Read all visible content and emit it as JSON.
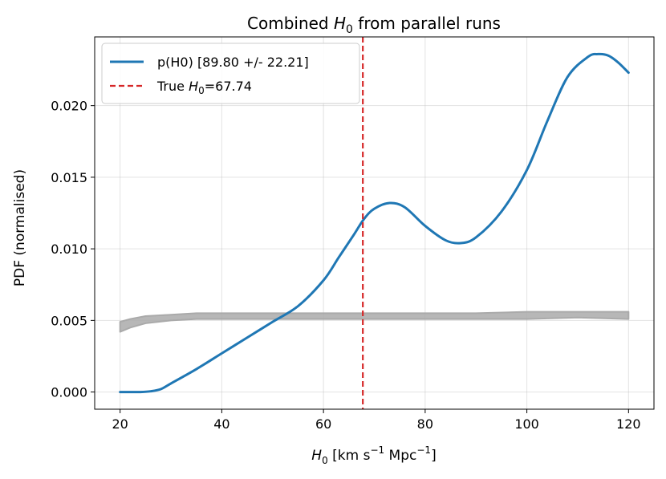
{
  "chart_data": {
    "type": "line",
    "title": {
      "prefix": "Combined ",
      "symbol": "H",
      "sub": "0",
      "suffix": " from parallel runs"
    },
    "xlabel": {
      "symbol": "H",
      "sub": "0",
      "text": " [km s",
      "sup1": "−1",
      "mid": " Mpc",
      "sup2": "−1",
      "end": "]"
    },
    "ylabel": "PDF (normalised)",
    "xlim": [
      15,
      125
    ],
    "ylim": [
      -0.0012,
      0.0248
    ],
    "xticks": [
      20,
      40,
      60,
      80,
      100,
      120
    ],
    "xtick_labels": [
      "20",
      "40",
      "60",
      "80",
      "100",
      "120"
    ],
    "yticks": [
      0.0,
      0.005,
      0.01,
      0.015,
      0.02
    ],
    "ytick_labels": [
      "0.000",
      "0.005",
      "0.010",
      "0.015",
      "0.020"
    ],
    "grid": true,
    "legend_position": "top-left",
    "series": [
      {
        "name": "p(H0) [89.80 +/- 22.21]",
        "color": "#1f77b4",
        "style": "solid",
        "x": [
          20,
          22,
          24,
          26,
          28,
          30,
          35,
          40,
          45,
          50,
          55,
          60,
          63,
          66,
          68,
          70,
          73,
          76,
          80,
          84,
          87,
          90,
          95,
          100,
          104,
          108,
          112,
          114,
          116,
          118,
          120
        ],
        "y": [
          0.0,
          0.0,
          0.0,
          5e-05,
          0.0002,
          0.0006,
          0.0016,
          0.0027,
          0.0038,
          0.0049,
          0.006,
          0.0078,
          0.0094,
          0.011,
          0.0121,
          0.0128,
          0.0132,
          0.0129,
          0.0116,
          0.0106,
          0.0104,
          0.0108,
          0.0126,
          0.0155,
          0.0189,
          0.022,
          0.0234,
          0.0236,
          0.0235,
          0.023,
          0.0223
        ]
      },
      {
        "name": "True H0=67.74",
        "legend_label": {
          "prefix": "True ",
          "symbol": "H",
          "sub": "0",
          "suffix": "=67.74"
        },
        "color": "#d62728",
        "style": "dashed",
        "x": 67.74
      },
      {
        "color": "#aaaaaa",
        "style": "band",
        "x": [
          20,
          22,
          25,
          30,
          35,
          40,
          50,
          60,
          70,
          80,
          90,
          100,
          110,
          120
        ],
        "y_low": [
          0.0042,
          0.0045,
          0.0048,
          0.005,
          0.0051,
          0.0051,
          0.0051,
          0.0051,
          0.0051,
          0.0051,
          0.0051,
          0.0051,
          0.0052,
          0.0051
        ],
        "y_high": [
          0.0049,
          0.0051,
          0.0053,
          0.0054,
          0.0055,
          0.0055,
          0.0055,
          0.0055,
          0.0055,
          0.0055,
          0.0055,
          0.0056,
          0.0056,
          0.0056
        ]
      }
    ]
  }
}
